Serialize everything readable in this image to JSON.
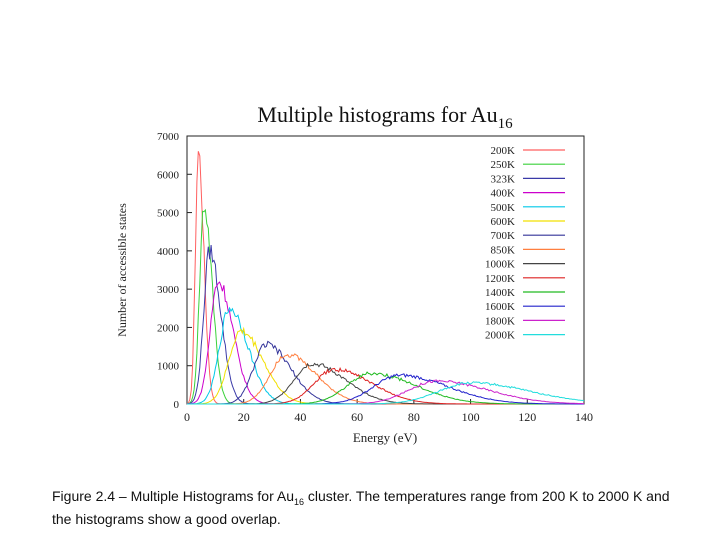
{
  "chart_data": {
    "type": "line",
    "title": "Multiple histograms for Au",
    "title_subscript": "16",
    "xlabel": "Energy (eV)",
    "ylabel": "Number of accessible states",
    "xlim": [
      0,
      140
    ],
    "ylim": [
      0,
      7000
    ],
    "x_ticks": [
      "0",
      "20",
      "40",
      "60",
      "80",
      "100",
      "120",
      "140"
    ],
    "y_ticks": [
      "0",
      "1000",
      "2000",
      "3000",
      "4000",
      "5000",
      "6000",
      "7000"
    ],
    "legend_position": "top-right",
    "series": [
      {
        "name": "200K",
        "color": "#ff5f5f",
        "peak_x": 4,
        "peak_y": 6600,
        "width": 1.5
      },
      {
        "name": "250K",
        "color": "#3ad13a",
        "peak_x": 6,
        "peak_y": 5200,
        "width": 2.2
      },
      {
        "name": "323K",
        "color": "#3a3aa8",
        "peak_x": 8,
        "peak_y": 4000,
        "width": 3.0
      },
      {
        "name": "400K",
        "color": "#cc00cc",
        "peak_x": 11,
        "peak_y": 3200,
        "width": 4.0
      },
      {
        "name": "500K",
        "color": "#00c8e8",
        "peak_x": 15,
        "peak_y": 2500,
        "width": 5.0
      },
      {
        "name": "600K",
        "color": "#f2e000",
        "peak_x": 19,
        "peak_y": 1900,
        "width": 6.0
      },
      {
        "name": "700K",
        "color": "#333399",
        "peak_x": 28,
        "peak_y": 1550,
        "width": 6.5
      },
      {
        "name": "850K",
        "color": "#ff7f3f",
        "peak_x": 35,
        "peak_y": 1300,
        "width": 8.0
      },
      {
        "name": "1000K",
        "color": "#444444",
        "peak_x": 44,
        "peak_y": 1050,
        "width": 9.0
      },
      {
        "name": "1200K",
        "color": "#dd2222",
        "peak_x": 52,
        "peak_y": 900,
        "width": 10.0
      },
      {
        "name": "1400K",
        "color": "#22bb22",
        "peak_x": 65,
        "peak_y": 800,
        "width": 12.0
      },
      {
        "name": "1600K",
        "color": "#2222cc",
        "peak_x": 75,
        "peak_y": 750,
        "width": 13.0
      },
      {
        "name": "1800K",
        "color": "#cc22cc",
        "peak_x": 88,
        "peak_y": 600,
        "width": 14.0
      },
      {
        "name": "2000K",
        "color": "#22dddd",
        "peak_x": 100,
        "peak_y": 550,
        "width": 16.0
      }
    ]
  },
  "caption": {
    "prefix": "Figure 2.4 – Multiple Histograms for Au",
    "subscript": "16",
    "suffix": " cluster. The temperatures range from 200 K to 2000 K and the histograms show a good overlap."
  }
}
